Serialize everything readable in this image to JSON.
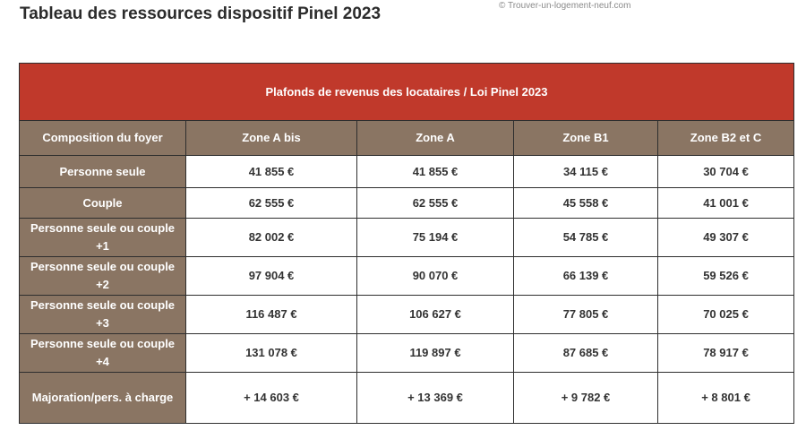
{
  "page": {
    "title": "Tableau des ressources dispositif Pinel 2023",
    "watermark": "© Trouver-un-logement-neuf.com"
  },
  "table": {
    "banner": "Plafonds de revenus des locataires / Loi Pinel 2023",
    "columns": [
      "Composition du foyer",
      "Zone A bis",
      "Zone A",
      "Zone B1",
      "Zone B2 et C"
    ],
    "rows": [
      {
        "label": "Personne seule",
        "values": [
          "41 855 €",
          "41 855 €",
          "34 115 €",
          "30 704 €"
        ]
      },
      {
        "label": "Couple",
        "values": [
          "62 555 €",
          "62 555 €",
          "45 558 €",
          "41 001 €"
        ]
      },
      {
        "label": "Personne seule ou couple +1",
        "values": [
          "82 002 €",
          "75 194 €",
          "54 785 €",
          "49 307 €"
        ]
      },
      {
        "label": "Personne seule ou couple +2",
        "values": [
          "97 904 €",
          "90 070 €",
          "66 139 €",
          "59 526 €"
        ]
      },
      {
        "label": "Personne seule ou couple +3",
        "values": [
          "116 487 €",
          "106 627 €",
          "77 805 €",
          "70 025 €"
        ]
      },
      {
        "label": "Personne seule ou couple +4",
        "values": [
          "131 078 €",
          "119 897 €",
          "87 685 €",
          "78 917 €"
        ]
      },
      {
        "label": "Majoration/pers. à charge",
        "values": [
          "+ 14 603 €",
          "+ 13 369 €",
          "+ 9 782 €",
          "+ 8 801 €"
        ]
      }
    ]
  }
}
